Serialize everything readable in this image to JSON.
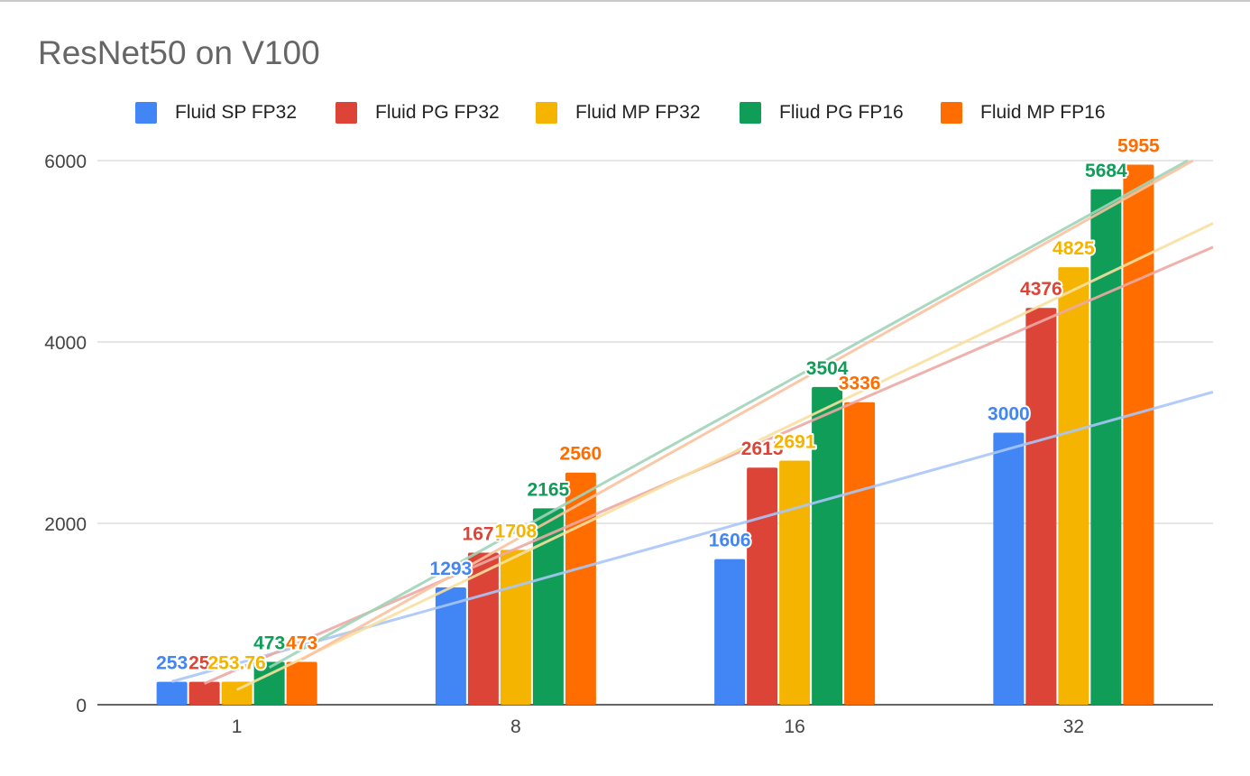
{
  "chart_data": {
    "type": "bar",
    "title": "ResNet50 on V100",
    "xlabel": "",
    "ylabel": "",
    "categories": [
      "1",
      "8",
      "16",
      "32"
    ],
    "ylim": [
      0,
      6000
    ],
    "yticks": [
      0,
      2000,
      4000,
      6000
    ],
    "ytick_labels": [
      "0",
      "2000",
      "4000",
      "6000"
    ],
    "grid": true,
    "legend_position": "top",
    "trendlines": true,
    "series": [
      {
        "name": "Fluid SP FP32",
        "color": "#4285f4",
        "trend_color": "#a8c6f8",
        "values": [
          253,
          1293,
          1606,
          3000
        ],
        "labels": [
          "253",
          "1293",
          "1606",
          "3000"
        ]
      },
      {
        "name": "Fluid PG FP32",
        "color": "#db4437",
        "trend_color": "#eda9a3",
        "values": [
          253,
          1677,
          2615,
          4376
        ],
        "labels": [
          "253",
          "1677",
          "2615",
          "4376"
        ]
      },
      {
        "name": "Fluid MP FP32",
        "color": "#f4b400",
        "trend_color": "#f8e0a0",
        "values": [
          253.76,
          1708,
          2691,
          4825
        ],
        "labels": [
          "253.76",
          "1708",
          "2691",
          "4825"
        ]
      },
      {
        "name": "Fliud PG FP16",
        "color": "#0f9d58",
        "trend_color": "#9fd4b9",
        "values": [
          473,
          2165,
          3504,
          5684
        ],
        "labels": [
          "473",
          "2165",
          "3504",
          "5684"
        ]
      },
      {
        "name": "Fluid MP FP16",
        "color": "#ff6d00",
        "trend_color": "#f9c2a0",
        "values": [
          473,
          2560,
          3336,
          5955
        ],
        "labels": [
          "473",
          "2560",
          "3336",
          "5955"
        ]
      }
    ]
  }
}
